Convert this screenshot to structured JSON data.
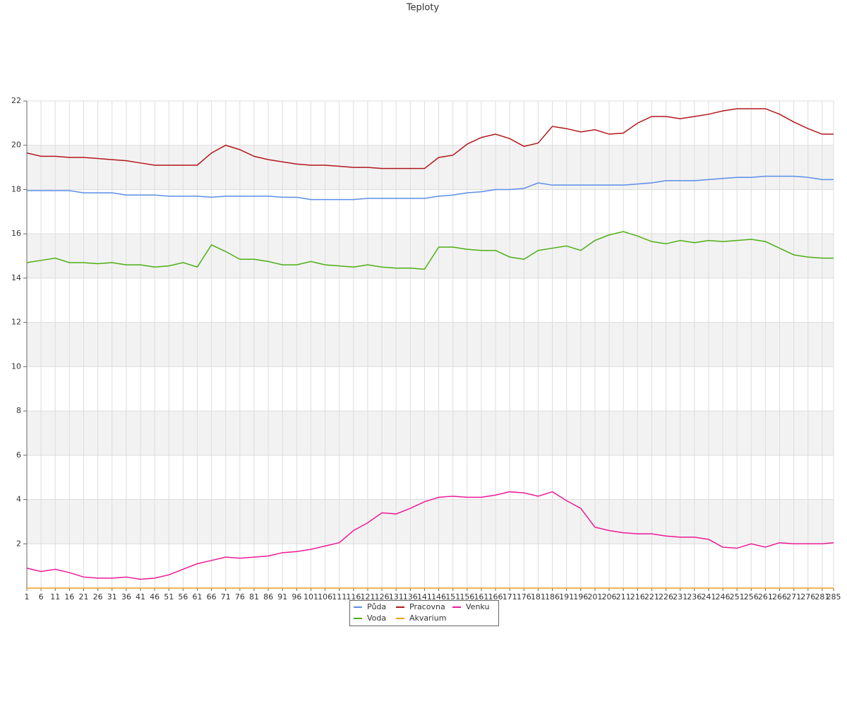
{
  "chart_data": {
    "type": "line",
    "title": "Teploty",
    "x": [
      1,
      6,
      11,
      16,
      21,
      26,
      31,
      36,
      41,
      46,
      51,
      56,
      61,
      66,
      71,
      76,
      81,
      86,
      91,
      96,
      101,
      106,
      111,
      116,
      121,
      126,
      131,
      136,
      141,
      146,
      151,
      156,
      161,
      166,
      171,
      176,
      181,
      186,
      191,
      196,
      201,
      206,
      211,
      216,
      221,
      226,
      231,
      236,
      241,
      246,
      251,
      256,
      261,
      266,
      271,
      276,
      281,
      285
    ],
    "xlim": [
      1,
      285
    ],
    "ylim": [
      0,
      22
    ],
    "yticks": [
      2,
      4,
      6,
      8,
      10,
      12,
      14,
      16,
      18,
      20,
      22
    ],
    "grid": true,
    "series": [
      {
        "name": "Půda",
        "color": "#5b8ee6",
        "values": [
          17.95,
          17.95,
          17.95,
          17.95,
          17.85,
          17.85,
          17.85,
          17.75,
          17.75,
          17.75,
          17.7,
          17.7,
          17.7,
          17.65,
          17.7,
          17.7,
          17.7,
          17.7,
          17.65,
          17.65,
          17.55,
          17.55,
          17.55,
          17.55,
          17.6,
          17.6,
          17.6,
          17.6,
          17.6,
          17.7,
          17.75,
          17.85,
          17.9,
          18.0,
          18.0,
          18.05,
          18.3,
          18.2,
          18.2,
          18.2,
          18.2,
          18.2,
          18.2,
          18.25,
          18.3,
          18.4,
          18.4,
          18.4,
          18.45,
          18.5,
          18.55,
          18.55,
          18.6,
          18.6,
          18.6,
          18.55,
          18.45,
          18.45
        ]
      },
      {
        "name": "Voda",
        "color": "#4caf14",
        "values": [
          14.7,
          14.8,
          14.9,
          14.7,
          14.7,
          14.65,
          14.7,
          14.6,
          14.6,
          14.5,
          14.55,
          14.7,
          14.5,
          15.5,
          15.2,
          14.85,
          14.85,
          14.75,
          14.6,
          14.6,
          14.75,
          14.6,
          14.55,
          14.5,
          14.6,
          14.5,
          14.45,
          14.45,
          14.4,
          15.4,
          15.4,
          15.3,
          15.25,
          15.25,
          14.95,
          14.85,
          15.25,
          15.35,
          15.45,
          15.25,
          15.7,
          15.95,
          16.1,
          15.9,
          15.65,
          15.55,
          15.7,
          15.6,
          15.7,
          15.65,
          15.7,
          15.75,
          15.65,
          15.35,
          15.05,
          14.95,
          14.9,
          14.9
        ]
      },
      {
        "name": "Pracovna",
        "color": "#b3161c",
        "values": [
          19.65,
          19.5,
          19.5,
          19.45,
          19.45,
          19.4,
          19.35,
          19.3,
          19.2,
          19.1,
          19.1,
          19.1,
          19.1,
          19.65,
          20.0,
          19.8,
          19.5,
          19.35,
          19.25,
          19.15,
          19.1,
          19.1,
          19.05,
          19.0,
          19.0,
          18.95,
          18.95,
          18.95,
          18.95,
          19.45,
          19.55,
          20.05,
          20.35,
          20.5,
          20.3,
          19.95,
          20.1,
          20.85,
          20.75,
          20.6,
          20.7,
          20.5,
          20.55,
          21.0,
          21.3,
          21.3,
          21.2,
          21.3,
          21.4,
          21.55,
          21.65,
          21.65,
          21.65,
          21.4,
          21.05,
          20.75,
          20.5,
          20.5
        ]
      },
      {
        "name": "Akvarium",
        "color": "#f0a021",
        "values": [
          0,
          0,
          0,
          0,
          0,
          0,
          0,
          0,
          0,
          0,
          0,
          0,
          0,
          0,
          0,
          0,
          0,
          0,
          0,
          0,
          0,
          0,
          0,
          0,
          0,
          0,
          0,
          0,
          0,
          0,
          0,
          0,
          0,
          0,
          0,
          0,
          0,
          0,
          0,
          0,
          0,
          0,
          0,
          0,
          0,
          0,
          0,
          0,
          0,
          0,
          0,
          0,
          0,
          0,
          0,
          0,
          0,
          0
        ]
      },
      {
        "name": "Venku",
        "color": "#ec1a96",
        "values": [
          0.9,
          0.75,
          0.85,
          0.7,
          0.5,
          0.45,
          0.45,
          0.5,
          0.4,
          0.45,
          0.6,
          0.85,
          1.1,
          1.25,
          1.4,
          1.35,
          1.4,
          1.45,
          1.6,
          1.65,
          1.75,
          1.9,
          2.05,
          2.6,
          2.95,
          3.4,
          3.35,
          3.6,
          3.9,
          4.1,
          4.15,
          4.1,
          4.1,
          4.2,
          4.35,
          4.3,
          4.15,
          4.35,
          3.95,
          3.6,
          2.75,
          2.6,
          2.5,
          2.45,
          2.45,
          2.35,
          2.3,
          2.3,
          2.2,
          1.85,
          1.8,
          2.0,
          1.85,
          2.05,
          2.0,
          2.0,
          2.0,
          2.05
        ]
      }
    ]
  }
}
